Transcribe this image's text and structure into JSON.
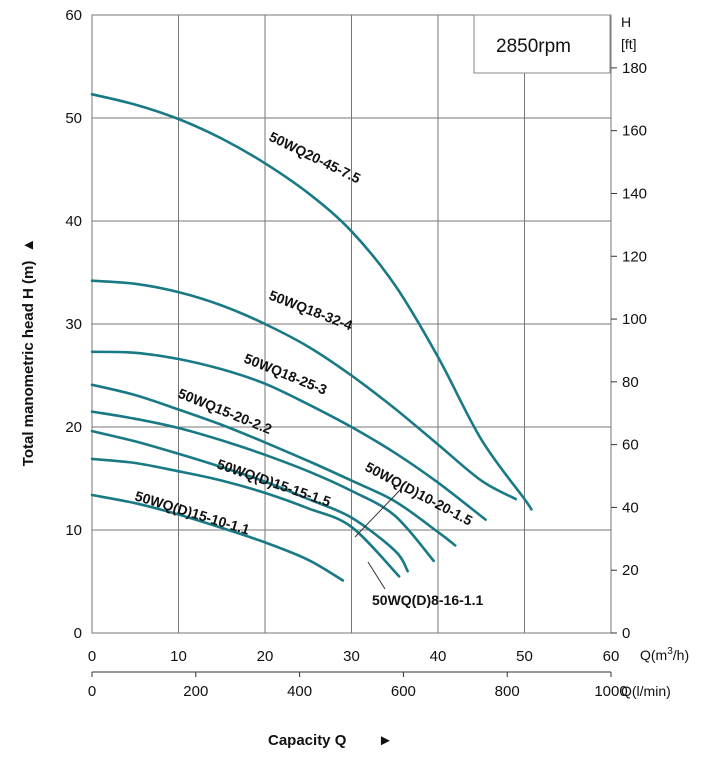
{
  "chart_data": {
    "type": "line",
    "title": "",
    "speed_label": "2850rpm",
    "ylabel": "Total manometric head H (m)",
    "ylabel_arrow": "▲",
    "xlabel": "Capacity Q",
    "xlabel_arrow": "►",
    "x_unit_m3h": [
      "Q(m",
      "3",
      "/h)"
    ],
    "x_unit_lmin": "Q(l/min)",
    "right_unit_top": "H",
    "right_unit_bottom": "[ft]",
    "xlim": [
      0,
      60
    ],
    "ylim": [
      0,
      60
    ],
    "x_ticks": [
      "0",
      "10",
      "20",
      "30",
      "40",
      "50",
      "60"
    ],
    "y_ticks": [
      "0",
      "10",
      "20",
      "30",
      "40",
      "50",
      "60"
    ],
    "lmin_ticks": [
      "0",
      "200",
      "400",
      "600",
      "800",
      "1000"
    ],
    "ft_ticks": [
      "0",
      "20",
      "40",
      "60",
      "80",
      "100",
      "120",
      "140",
      "160",
      "180"
    ],
    "curve_color": "#197a85",
    "series": [
      {
        "name": "50WQ20-45-7.5",
        "x": [
          0,
          5,
          10,
          15,
          20,
          25,
          30,
          35,
          40,
          45,
          50,
          50.8
        ],
        "y": [
          52.3,
          51.3,
          49.9,
          48.0,
          45.6,
          42.7,
          39.0,
          33.8,
          26.8,
          18.8,
          13.0,
          12.0
        ]
      },
      {
        "name": "50WQ18-32-4",
        "x": [
          0,
          5,
          10,
          15,
          20,
          25,
          30,
          35,
          40,
          45,
          49
        ],
        "y": [
          34.2,
          33.9,
          33.1,
          31.8,
          30.0,
          27.8,
          25.0,
          21.8,
          18.3,
          14.8,
          13.0
        ]
      },
      {
        "name": "50WQ18-25-3",
        "x": [
          0,
          5,
          10,
          15,
          20,
          25,
          30,
          35,
          40,
          45.5
        ],
        "y": [
          27.3,
          27.2,
          26.6,
          25.6,
          24.2,
          22.2,
          20.0,
          17.5,
          14.6,
          11.0
        ]
      },
      {
        "name": "50WQ(D)10-20-1.5",
        "x": [
          0,
          5,
          10,
          15,
          20,
          25,
          30,
          35,
          40,
          42
        ],
        "y": [
          24.1,
          23.1,
          21.7,
          20.2,
          18.5,
          16.7,
          14.8,
          12.8,
          9.8,
          8.5
        ]
      },
      {
        "name": "50WQ15-20-2.2",
        "x": [
          0,
          5,
          10,
          15,
          20,
          25,
          30,
          35,
          39.5
        ],
        "y": [
          21.5,
          20.8,
          19.9,
          18.7,
          17.3,
          15.7,
          13.8,
          11.4,
          7.0
        ]
      },
      {
        "name": "50WQ(D)8-16-1.1",
        "x": [
          0,
          5,
          10,
          15,
          20,
          25,
          30,
          35,
          36.5
        ],
        "y": [
          19.6,
          18.6,
          17.4,
          16.1,
          14.7,
          13.0,
          11.2,
          8.0,
          6.0
        ]
      },
      {
        "name": "50WQ(D)15-15-1.5",
        "x": [
          0,
          5,
          10,
          15,
          20,
          25,
          30,
          35.5
        ],
        "y": [
          16.9,
          16.5,
          15.7,
          14.8,
          13.6,
          12.1,
          10.3,
          5.5
        ]
      },
      {
        "name": "50WQ(D)15-10-1.1",
        "x": [
          0,
          5,
          10,
          15,
          20,
          25,
          29
        ],
        "y": [
          13.4,
          12.6,
          11.5,
          10.2,
          8.8,
          7.1,
          5.1
        ]
      }
    ]
  }
}
